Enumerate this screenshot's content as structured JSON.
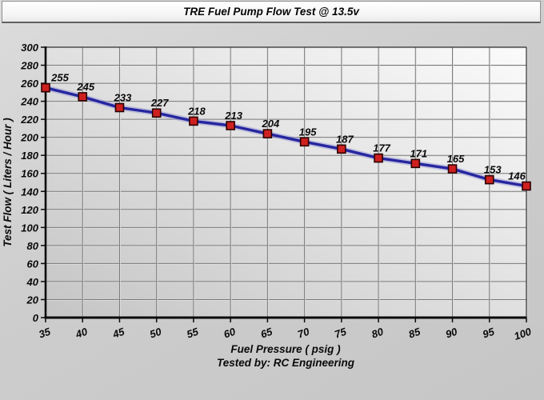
{
  "chart_data": {
    "type": "line",
    "title": "TRE Fuel Pump Flow Test @ 13.5v",
    "x": [
      35,
      40,
      45,
      50,
      55,
      60,
      65,
      70,
      75,
      80,
      85,
      90,
      95,
      100
    ],
    "values": [
      255,
      245,
      233,
      227,
      218,
      213,
      204,
      195,
      187,
      177,
      171,
      165,
      153,
      146
    ],
    "data_labels_shown": true,
    "xlabel": "Fuel Pressure ( psig )",
    "xlabel_line2": "Tested by: RC Engineering",
    "ylabel": "Test Flow ( Liters / Hour )",
    "xlim": [
      35,
      100
    ],
    "ylim": [
      0,
      300
    ],
    "x_ticks": [
      35,
      40,
      45,
      50,
      55,
      60,
      65,
      70,
      75,
      80,
      85,
      90,
      95,
      100
    ],
    "y_ticks": [
      0,
      20,
      40,
      60,
      80,
      100,
      120,
      140,
      160,
      180,
      200,
      220,
      240,
      260,
      280,
      300
    ],
    "grid": true,
    "legend": "none",
    "colors": {
      "line": "#2626a0",
      "line_halo": "#9e9ed6",
      "marker_fill": "#cf2020",
      "marker_border": "#2b0000",
      "grid": "#7a7a7a",
      "grid_highlight": "#e2e2e2",
      "axis": "#0a0a0a",
      "plot_bg_light": "#fbfbfb",
      "plot_bg_dark": "#c5c5c5"
    }
  }
}
